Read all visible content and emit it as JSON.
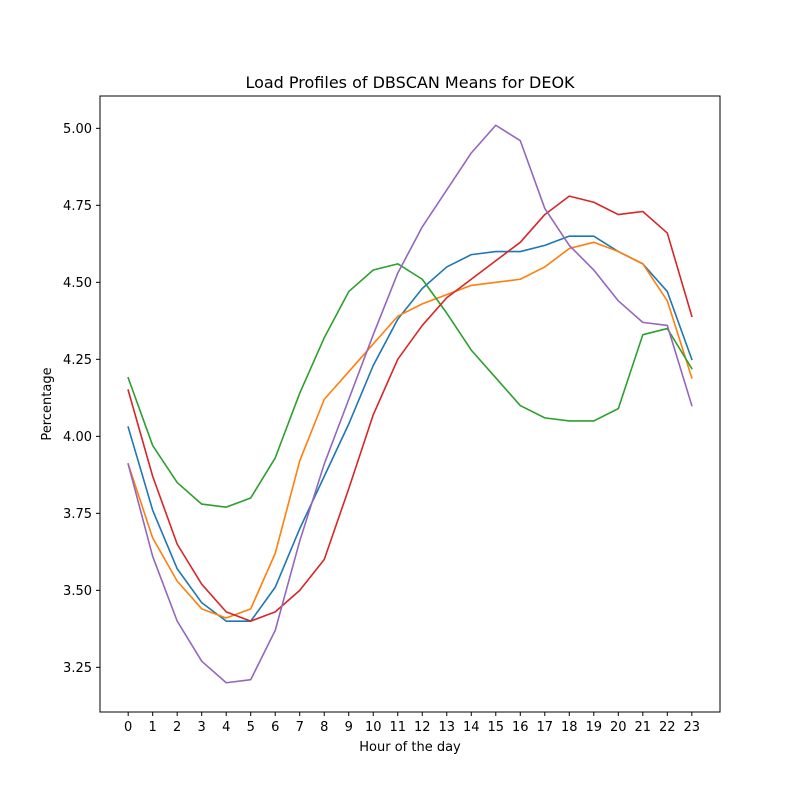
{
  "chart_data": {
    "type": "line",
    "title": "Load Profiles of DBSCAN Means for DEOK",
    "xlabel": "Hour of the day",
    "ylabel": "Percentage",
    "x": [
      0,
      1,
      2,
      3,
      4,
      5,
      6,
      7,
      8,
      9,
      10,
      11,
      12,
      13,
      14,
      15,
      16,
      17,
      18,
      19,
      20,
      21,
      22,
      23
    ],
    "xlim": [
      -1.15,
      24.15
    ],
    "ylim": [
      3.105,
      5.105
    ],
    "yticks": [
      3.25,
      3.5,
      3.75,
      4.0,
      4.25,
      4.5,
      4.75,
      5.0
    ],
    "ytick_labels": [
      "3.25",
      "3.50",
      "3.75",
      "4.00",
      "4.25",
      "4.50",
      "4.75",
      "5.00"
    ],
    "grid": false,
    "legend": false,
    "series": [
      {
        "color": "#1f77b4",
        "values": [
          4.03,
          3.76,
          3.57,
          3.46,
          3.4,
          3.4,
          3.51,
          3.7,
          3.87,
          4.04,
          4.23,
          4.38,
          4.48,
          4.55,
          4.59,
          4.6,
          4.6,
          4.62,
          4.65,
          4.65,
          4.6,
          4.56,
          4.47,
          4.25
        ]
      },
      {
        "color": "#ff7f0e",
        "values": [
          3.91,
          3.67,
          3.53,
          3.44,
          3.41,
          3.44,
          3.62,
          3.92,
          4.12,
          4.21,
          4.3,
          4.39,
          4.43,
          4.46,
          4.49,
          4.5,
          4.51,
          4.55,
          4.61,
          4.63,
          4.6,
          4.56,
          4.44,
          4.19
        ]
      },
      {
        "color": "#2ca02c",
        "values": [
          4.19,
          3.97,
          3.85,
          3.78,
          3.77,
          3.8,
          3.93,
          4.14,
          4.32,
          4.47,
          4.54,
          4.56,
          4.51,
          4.4,
          4.28,
          4.19,
          4.1,
          4.06,
          4.05,
          4.05,
          4.09,
          4.33,
          4.35,
          4.22
        ]
      },
      {
        "color": "#d62728",
        "values": [
          4.15,
          3.87,
          3.65,
          3.52,
          3.43,
          3.4,
          3.43,
          3.5,
          3.6,
          3.83,
          4.07,
          4.25,
          4.36,
          4.45,
          4.51,
          4.57,
          4.63,
          4.72,
          4.78,
          4.76,
          4.72,
          4.73,
          4.66,
          4.39
        ]
      },
      {
        "color": "#9467bd",
        "values": [
          3.91,
          3.61,
          3.4,
          3.27,
          3.2,
          3.21,
          3.37,
          3.66,
          3.91,
          4.12,
          4.33,
          4.53,
          4.68,
          4.8,
          4.92,
          5.01,
          4.96,
          4.74,
          4.62,
          4.54,
          4.44,
          4.37,
          4.36,
          4.1
        ]
      }
    ]
  }
}
